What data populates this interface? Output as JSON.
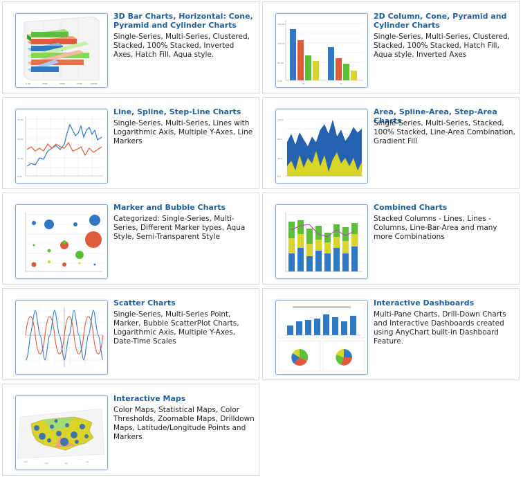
{
  "cards": [
    {
      "title": "3D Bar Charts, Horizontal: Cone, Pyramid and Cylinder Charts",
      "desc": "Single-Series, Multi-Series, Clustered, Stacked, 100% Stacked, Inverted Axes, Hatch Fill, Aqua style.",
      "thumb": "3d-horizontal-bar-chart-thumbnail"
    },
    {
      "title": "2D Column, Cone, Pyramid and Cylinder Charts",
      "desc": "Single-Series, Multi-Series, Clustered, Stacked, 100% Stacked, Hatch Fill, Aqua style, Inverted Axes",
      "thumb": "column-chart-thumbnail"
    },
    {
      "title": "Line, Spline, Step-Line Charts",
      "desc": "Single-Series, Multi-Series, Lines with Logarithmic Axis, Multiple Y-Axes, Line Markers",
      "thumb": "line-chart-thumbnail"
    },
    {
      "title": "Area, Spline-Area, Step-Area Charts",
      "desc": "Single-Series, Multi-Series, Stacked, 100% Stacked, Line-Area Combination, Gradient Fill",
      "thumb": "area-chart-thumbnail"
    },
    {
      "title": "Marker and Bubble Charts",
      "desc": "Categorized: Single-Series, Multi-Series, Different Marker types, Aqua Style, Semi-Transparent Style",
      "thumb": "bubble-chart-thumbnail"
    },
    {
      "title": "Combined Charts",
      "desc": "Stacked Columns - Lines, Lines - Columns, Line-Bar-Area and many more Combinations",
      "thumb": "combined-chart-thumbnail"
    },
    {
      "title": "Scatter Charts",
      "desc": "Single-Series, Multi-Series Point, Marker, Bubble ScatterPlot Charts, Logarithmic Axis, Multiple Y-Axes, Date-Time Scales",
      "thumb": "scatter-chart-thumbnail"
    },
    {
      "title": "Interactive Dashboards",
      "desc": "Multi-Pane Charts, Drill-Down Charts and Interactive Dashboards created using AnyChart built-in Dashboard Feature.",
      "thumb": "dashboard-thumbnail"
    },
    {
      "title": "Interactive Maps",
      "desc": "Color Maps, Statistical Maps, Color Thresholds, Zoomable Maps, Drilldown Maps, Latitude/Longitude Points and Markers",
      "thumb": "map-thumbnail"
    }
  ],
  "colors": {
    "title": "#1f5f9b",
    "border": "#dadada",
    "thumb_border": "#7fa6c9",
    "blue": "#2f78c4",
    "red": "#e05b3b",
    "green": "#5cbf3a",
    "yellow": "#d8d42a"
  }
}
